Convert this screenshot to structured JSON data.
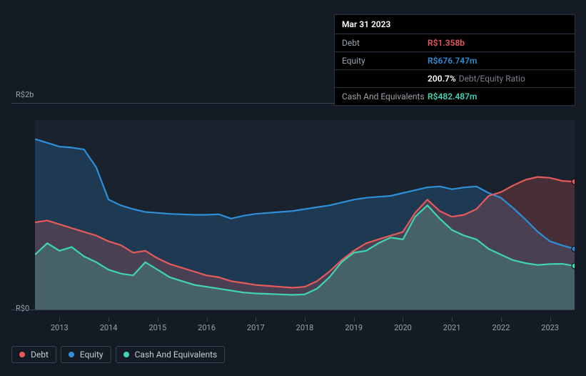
{
  "tooltip": {
    "date": "Mar 31 2023",
    "rows": [
      {
        "label": "Debt",
        "value": "R$1.358b",
        "color": "#e65a5a"
      },
      {
        "label": "Equity",
        "value": "R$676.747m",
        "color": "#2e8fd8"
      },
      {
        "label": "",
        "value": "200.7%",
        "suffix": "Debt/Equity Ratio",
        "color": "#ffffff"
      },
      {
        "label": "Cash And Equivalents",
        "value": "R$482.487m",
        "color": "#3fd4b4"
      }
    ]
  },
  "chart": {
    "type": "area-line",
    "background_color": "#1a222d",
    "page_background": "#151b24",
    "ylim": [
      0,
      2000
    ],
    "y_ticks": [
      {
        "v": 0,
        "label": "R$0"
      },
      {
        "v": 2000,
        "label": "R$2b"
      }
    ],
    "x_years": [
      2013,
      2014,
      2015,
      2016,
      2017,
      2018,
      2019,
      2020,
      2021,
      2022,
      2023
    ],
    "x_start": 2012.5,
    "x_end": 2023.5,
    "series": [
      {
        "name": "Equity",
        "color": "#2e8fd8",
        "fill": "rgba(46,143,216,0.22)",
        "values": [
          [
            2012.5,
            1800
          ],
          [
            2012.75,
            1760
          ],
          [
            2013,
            1720
          ],
          [
            2013.25,
            1710
          ],
          [
            2013.5,
            1690
          ],
          [
            2013.75,
            1500
          ],
          [
            2014,
            1160
          ],
          [
            2014.25,
            1100
          ],
          [
            2014.5,
            1060
          ],
          [
            2014.75,
            1030
          ],
          [
            2015,
            1020
          ],
          [
            2015.25,
            1010
          ],
          [
            2015.5,
            1005
          ],
          [
            2015.75,
            1000
          ],
          [
            2016,
            1000
          ],
          [
            2016.25,
            1005
          ],
          [
            2016.5,
            960
          ],
          [
            2016.75,
            990
          ],
          [
            2017,
            1010
          ],
          [
            2017.25,
            1020
          ],
          [
            2017.5,
            1030
          ],
          [
            2017.75,
            1040
          ],
          [
            2018,
            1060
          ],
          [
            2018.25,
            1080
          ],
          [
            2018.5,
            1100
          ],
          [
            2018.75,
            1130
          ],
          [
            2019,
            1160
          ],
          [
            2019.25,
            1180
          ],
          [
            2019.5,
            1190
          ],
          [
            2019.75,
            1200
          ],
          [
            2020,
            1230
          ],
          [
            2020.25,
            1260
          ],
          [
            2020.5,
            1290
          ],
          [
            2020.75,
            1300
          ],
          [
            2021,
            1270
          ],
          [
            2021.25,
            1290
          ],
          [
            2021.5,
            1300
          ],
          [
            2021.75,
            1230
          ],
          [
            2022,
            1180
          ],
          [
            2022.25,
            1070
          ],
          [
            2022.5,
            950
          ],
          [
            2022.75,
            820
          ],
          [
            2023,
            720
          ],
          [
            2023.25,
            677
          ],
          [
            2023.5,
            640
          ]
        ]
      },
      {
        "name": "Debt",
        "color": "#e65a5a",
        "fill": "rgba(230,90,90,0.22)",
        "values": [
          [
            2012.5,
            920
          ],
          [
            2012.75,
            940
          ],
          [
            2013,
            900
          ],
          [
            2013.25,
            860
          ],
          [
            2013.5,
            820
          ],
          [
            2013.75,
            780
          ],
          [
            2014,
            720
          ],
          [
            2014.25,
            680
          ],
          [
            2014.5,
            600
          ],
          [
            2014.75,
            620
          ],
          [
            2015,
            540
          ],
          [
            2015.25,
            480
          ],
          [
            2015.5,
            440
          ],
          [
            2015.75,
            400
          ],
          [
            2016,
            360
          ],
          [
            2016.25,
            340
          ],
          [
            2016.5,
            300
          ],
          [
            2016.75,
            280
          ],
          [
            2017,
            260
          ],
          [
            2017.25,
            250
          ],
          [
            2017.5,
            240
          ],
          [
            2017.75,
            230
          ],
          [
            2018,
            240
          ],
          [
            2018.25,
            300
          ],
          [
            2018.5,
            400
          ],
          [
            2018.75,
            520
          ],
          [
            2019,
            620
          ],
          [
            2019.25,
            700
          ],
          [
            2019.5,
            740
          ],
          [
            2019.75,
            780
          ],
          [
            2020,
            820
          ],
          [
            2020.25,
            1020
          ],
          [
            2020.5,
            1160
          ],
          [
            2020.75,
            1040
          ],
          [
            2021,
            980
          ],
          [
            2021.25,
            1000
          ],
          [
            2021.5,
            1060
          ],
          [
            2021.75,
            1200
          ],
          [
            2022,
            1240
          ],
          [
            2022.25,
            1310
          ],
          [
            2022.5,
            1370
          ],
          [
            2022.75,
            1400
          ],
          [
            2023,
            1390
          ],
          [
            2023.25,
            1358
          ],
          [
            2023.5,
            1350
          ]
        ]
      },
      {
        "name": "Cash And Equivalents",
        "color": "#3fd4b4",
        "fill": "rgba(63,212,180,0.22)",
        "values": [
          [
            2012.5,
            580
          ],
          [
            2012.75,
            700
          ],
          [
            2013,
            620
          ],
          [
            2013.25,
            660
          ],
          [
            2013.5,
            560
          ],
          [
            2013.75,
            500
          ],
          [
            2014,
            420
          ],
          [
            2014.25,
            380
          ],
          [
            2014.5,
            360
          ],
          [
            2014.75,
            500
          ],
          [
            2015,
            420
          ],
          [
            2015.25,
            340
          ],
          [
            2015.5,
            300
          ],
          [
            2015.75,
            260
          ],
          [
            2016,
            240
          ],
          [
            2016.25,
            220
          ],
          [
            2016.5,
            200
          ],
          [
            2016.75,
            180
          ],
          [
            2017,
            170
          ],
          [
            2017.25,
            165
          ],
          [
            2017.5,
            160
          ],
          [
            2017.75,
            155
          ],
          [
            2018,
            160
          ],
          [
            2018.25,
            220
          ],
          [
            2018.5,
            340
          ],
          [
            2018.75,
            500
          ],
          [
            2019,
            600
          ],
          [
            2019.25,
            620
          ],
          [
            2019.5,
            700
          ],
          [
            2019.75,
            760
          ],
          [
            2020,
            740
          ],
          [
            2020.25,
            980
          ],
          [
            2020.5,
            1100
          ],
          [
            2020.75,
            960
          ],
          [
            2021,
            840
          ],
          [
            2021.25,
            780
          ],
          [
            2021.5,
            740
          ],
          [
            2021.75,
            640
          ],
          [
            2022,
            580
          ],
          [
            2022.25,
            520
          ],
          [
            2022.5,
            490
          ],
          [
            2022.75,
            470
          ],
          [
            2023,
            480
          ],
          [
            2023.25,
            482
          ],
          [
            2023.5,
            460
          ]
        ]
      }
    ],
    "line_width": 2.2,
    "axis_color": "#3a4350",
    "tick_fontsize": 11,
    "tick_color": "#9aa3ad"
  },
  "legend": [
    {
      "label": "Debt",
      "color": "#e65a5a"
    },
    {
      "label": "Equity",
      "color": "#2e8fd8"
    },
    {
      "label": "Cash And Equivalents",
      "color": "#3fd4b4"
    }
  ]
}
